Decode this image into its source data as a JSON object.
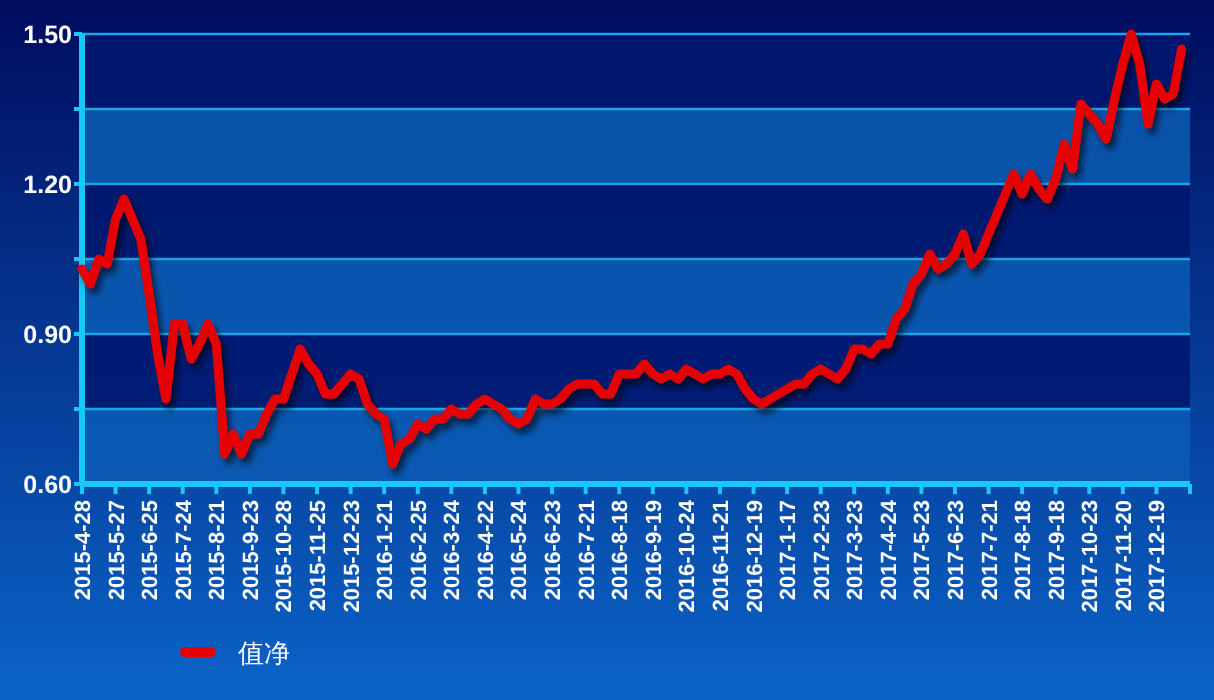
{
  "chart_data": {
    "type": "line",
    "categories": [
      "2015-4-28",
      null,
      null,
      null,
      "2015-5-27",
      null,
      null,
      null,
      "2015-6-25",
      null,
      null,
      null,
      "2015-7-24",
      null,
      null,
      null,
      "2015-8-21",
      null,
      null,
      null,
      "2015-9-23",
      null,
      null,
      null,
      "2015-10-28",
      null,
      null,
      null,
      "2015-11-25",
      null,
      null,
      null,
      "2015-12-23",
      null,
      null,
      null,
      "2016-1-21",
      null,
      null,
      null,
      "2016-2-25",
      null,
      null,
      null,
      "2016-3-24",
      null,
      null,
      null,
      "2016-4-22",
      null,
      null,
      null,
      "2016-5-24",
      null,
      null,
      null,
      "2016-6-23",
      null,
      null,
      null,
      "2016-7-21",
      null,
      null,
      null,
      "2016-8-18",
      null,
      null,
      null,
      "2016-9-19",
      null,
      null,
      null,
      "2016-10-24",
      null,
      null,
      null,
      "2016-11-21",
      null,
      null,
      null,
      "2016-12-19",
      null,
      null,
      null,
      "2017-1-17",
      null,
      null,
      null,
      "2017-2-23",
      null,
      null,
      null,
      "2017-3-23",
      null,
      null,
      null,
      "2017-4-24",
      null,
      null,
      null,
      "2017-5-23",
      null,
      null,
      null,
      "2017-6-23",
      null,
      null,
      null,
      "2017-7-21",
      null,
      null,
      null,
      "2017-8-18",
      null,
      null,
      null,
      "2017-9-18",
      null,
      null,
      null,
      "2017-10-23",
      null,
      null,
      null,
      "2017-11-20",
      null,
      null,
      null,
      "2017-12-19",
      null,
      null,
      null
    ],
    "series": [
      {
        "name": "值净",
        "color": "#e60000",
        "values": [
          1.03,
          1.0,
          1.05,
          1.04,
          1.13,
          1.17,
          1.13,
          1.09,
          0.98,
          0.86,
          0.77,
          0.92,
          0.92,
          0.85,
          0.88,
          0.92,
          0.88,
          0.66,
          0.7,
          0.66,
          0.7,
          0.7,
          0.74,
          0.77,
          0.77,
          0.82,
          0.87,
          0.84,
          0.82,
          0.78,
          0.78,
          0.8,
          0.82,
          0.81,
          0.76,
          0.74,
          0.73,
          0.64,
          0.68,
          0.69,
          0.72,
          0.71,
          0.73,
          0.73,
          0.75,
          0.74,
          0.74,
          0.76,
          0.77,
          0.76,
          0.75,
          0.73,
          0.72,
          0.73,
          0.77,
          0.76,
          0.76,
          0.77,
          0.79,
          0.8,
          0.8,
          0.8,
          0.78,
          0.78,
          0.82,
          0.82,
          0.82,
          0.84,
          0.82,
          0.81,
          0.82,
          0.81,
          0.83,
          0.82,
          0.81,
          0.82,
          0.82,
          0.83,
          0.82,
          0.79,
          0.77,
          0.76,
          0.77,
          0.78,
          0.79,
          0.8,
          0.8,
          0.82,
          0.83,
          0.82,
          0.81,
          0.83,
          0.87,
          0.87,
          0.86,
          0.88,
          0.88,
          0.93,
          0.95,
          1.0,
          1.02,
          1.06,
          1.03,
          1.04,
          1.06,
          1.1,
          1.04,
          1.06,
          1.1,
          1.14,
          1.18,
          1.22,
          1.18,
          1.22,
          1.19,
          1.17,
          1.21,
          1.28,
          1.23,
          1.36,
          1.34,
          1.32,
          1.29,
          1.37,
          1.44,
          1.5,
          1.44,
          1.32,
          1.4,
          1.37,
          1.38,
          1.47
        ]
      }
    ],
    "ylim": [
      0.6,
      1.5
    ],
    "yticks": [
      {
        "value": 0.6,
        "label": "0.60"
      },
      {
        "value": 0.75,
        "label": null
      },
      {
        "value": 0.9,
        "label": "0.90"
      },
      {
        "value": 1.05,
        "label": null
      },
      {
        "value": 1.2,
        "label": "1.20"
      },
      {
        "value": 1.35,
        "label": null
      },
      {
        "value": 1.5,
        "label": "1.50"
      }
    ],
    "bands": [
      {
        "axis": "y",
        "from": 0.6,
        "to": 0.75,
        "color": "#0a5cb4"
      },
      {
        "axis": "y",
        "from": 0.75,
        "to": 0.9,
        "color": "#00166e"
      },
      {
        "axis": "y",
        "from": 0.9,
        "to": 1.05,
        "color": "#0a5cb4"
      },
      {
        "axis": "y",
        "from": 1.05,
        "to": 1.2,
        "color": "#00166e"
      },
      {
        "axis": "y",
        "from": 1.2,
        "to": 1.35,
        "color": "#0a5cb4"
      },
      {
        "axis": "y",
        "from": 1.35,
        "to": 1.5,
        "color": "#00166e"
      }
    ],
    "grid": "y",
    "legend": "bottom left"
  }
}
